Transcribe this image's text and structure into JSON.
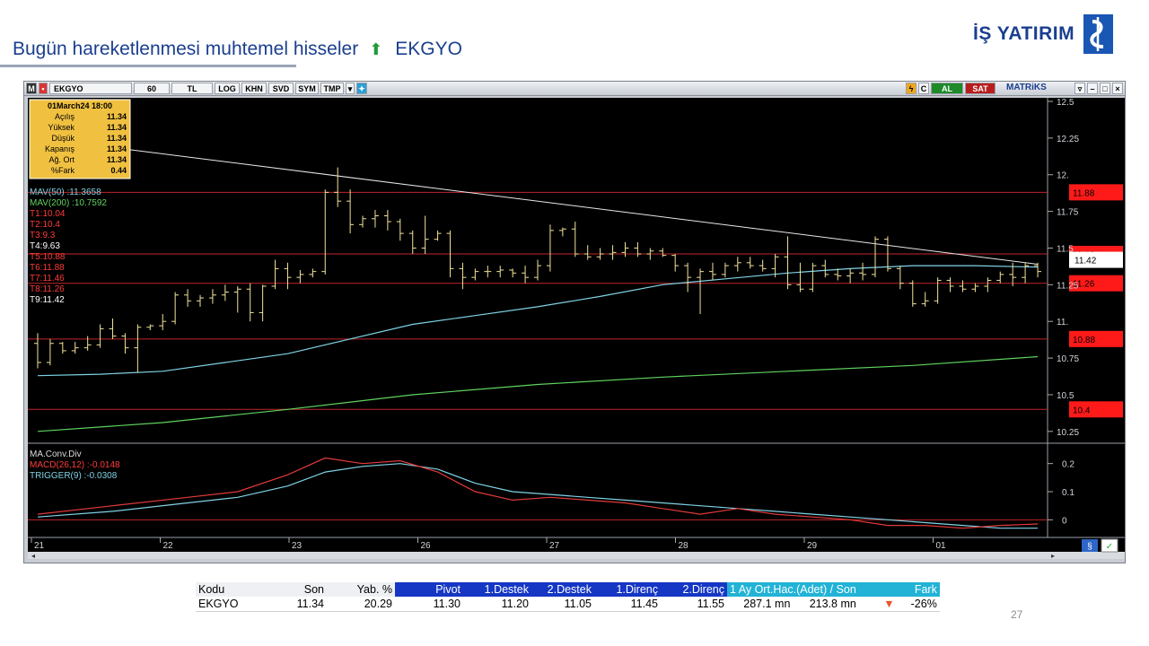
{
  "slide": {
    "title": "Bugün hareketlenmesi muhtemel hisseler",
    "arrow": "⬆",
    "symbol": "EKGYO",
    "logo": "İŞ YATIRIM",
    "page_number": "27"
  },
  "toolbar": {
    "symbol": "EKGYO",
    "period": "60",
    "currency": "TL",
    "scale": "LOG",
    "buttons": [
      "KHN",
      "SVD",
      "SYM",
      "TMP"
    ],
    "buy": "AL",
    "sell": "SAT",
    "brand": "MATRiKS"
  },
  "info_box": {
    "date": "01March24 18:00",
    "rows": [
      {
        "label": "Açılış",
        "value": "11.34"
      },
      {
        "label": "Yüksek",
        "value": "11.34"
      },
      {
        "label": "Düşük",
        "value": "11.34"
      },
      {
        "label": "Kapanış",
        "value": "11.34"
      },
      {
        "label": "Ağ. Ort",
        "value": "11.34"
      },
      {
        "label": "%Fark",
        "value": "0.44"
      }
    ]
  },
  "indicators": [
    {
      "text": "MAV(50)    :11.3658",
      "color": "#7fd3e6"
    },
    {
      "text": "MAV(200)   :10.7592",
      "color": "#5fd35f"
    },
    {
      "text": "T1:10.04",
      "color": "#ff3b3b"
    },
    {
      "text": "T2:10.4",
      "color": "#ff3b3b"
    },
    {
      "text": "T3:9.3",
      "color": "#ff3b3b"
    },
    {
      "text": "T4:9.63",
      "color": "#ffffff"
    },
    {
      "text": "T5:10.88",
      "color": "#ff3b3b"
    },
    {
      "text": "T6:11.88",
      "color": "#ff3b3b"
    },
    {
      "text": "T7:11.46",
      "color": "#ff3b3b"
    },
    {
      "text": "T8:11.26",
      "color": "#ff3b3b"
    },
    {
      "text": "T9:11.42",
      "color": "#ffffff"
    }
  ],
  "macd_labels": [
    {
      "text": "MA.Conv.Div",
      "color": "#dcdcdc"
    },
    {
      "text": "MACD(26,12)  :-0.0148",
      "color": "#ff3b3b"
    },
    {
      "text": "TRIGGER(9)   :-0.0308",
      "color": "#7fd3e6"
    }
  ],
  "chart_data": {
    "type": "candlestick",
    "symbol": "EKGYO",
    "y_ticks": [
      "12.5",
      "12.25",
      "12.",
      "11.75",
      "11.5",
      "11.25",
      "11.",
      "10.75",
      "10.5",
      "10.25"
    ],
    "ylim": [
      10.2,
      12.5
    ],
    "x_labels": [
      "21",
      "22",
      "23",
      "26",
      "27",
      "28",
      "29",
      "01"
    ],
    "last_price": "11.42",
    "level_tags": [
      {
        "value": 11.88,
        "label": "11.88"
      },
      {
        "value": 11.46,
        "label": "11.46"
      },
      {
        "value": 11.26,
        "label": "11.26"
      },
      {
        "value": 10.88,
        "label": "10.88"
      },
      {
        "value": 10.4,
        "label": "10.4"
      }
    ],
    "trendline": [
      [
        0,
        12.25
      ],
      [
        80,
        11.39
      ]
    ],
    "ohlc": [
      [
        10.85,
        10.92,
        10.68,
        10.72
      ],
      [
        10.72,
        10.88,
        10.7,
        10.85
      ],
      [
        10.85,
        10.86,
        10.78,
        10.8
      ],
      [
        10.8,
        10.86,
        10.78,
        10.82
      ],
      [
        10.82,
        10.9,
        10.8,
        10.84
      ],
      [
        10.84,
        10.98,
        10.82,
        10.95
      ],
      [
        10.95,
        11.02,
        10.88,
        10.9
      ],
      [
        10.9,
        10.92,
        10.78,
        10.82
      ],
      [
        10.82,
        10.98,
        10.65,
        10.96
      ],
      [
        10.96,
        10.98,
        10.94,
        10.97
      ],
      [
        10.97,
        11.05,
        10.94,
        11.0
      ],
      [
        11.0,
        11.2,
        10.98,
        11.18
      ],
      [
        11.18,
        11.22,
        11.1,
        11.14
      ],
      [
        11.14,
        11.18,
        11.1,
        11.16
      ],
      [
        11.16,
        11.22,
        11.12,
        11.18
      ],
      [
        11.18,
        11.25,
        11.14,
        11.2
      ],
      [
        11.2,
        11.24,
        11.06,
        11.22
      ],
      [
        11.22,
        11.26,
        11.0,
        11.06
      ],
      [
        11.06,
        11.25,
        11.0,
        11.24
      ],
      [
        11.24,
        11.42,
        11.22,
        11.36
      ],
      [
        11.36,
        11.4,
        11.22,
        11.3
      ],
      [
        11.3,
        11.35,
        11.26,
        11.32
      ],
      [
        11.32,
        11.36,
        11.3,
        11.34
      ],
      [
        11.34,
        11.9,
        11.32,
        11.88
      ],
      [
        11.88,
        12.05,
        11.78,
        11.82
      ],
      [
        11.82,
        11.9,
        11.6,
        11.66
      ],
      [
        11.66,
        11.72,
        11.64,
        11.7
      ],
      [
        11.7,
        11.76,
        11.64,
        11.72
      ],
      [
        11.72,
        11.76,
        11.62,
        11.68
      ],
      [
        11.68,
        11.7,
        11.55,
        11.6
      ],
      [
        11.6,
        11.62,
        11.46,
        11.5
      ],
      [
        11.5,
        11.72,
        11.46,
        11.56
      ],
      [
        11.56,
        11.62,
        11.55,
        11.6
      ],
      [
        11.6,
        11.62,
        11.3,
        11.36
      ],
      [
        11.36,
        11.4,
        11.22,
        11.3
      ],
      [
        11.3,
        11.36,
        11.28,
        11.34
      ],
      [
        11.34,
        11.38,
        11.3,
        11.34
      ],
      [
        11.34,
        11.38,
        11.3,
        11.35
      ],
      [
        11.35,
        11.36,
        11.3,
        11.33
      ],
      [
        11.33,
        11.38,
        11.26,
        11.3
      ],
      [
        11.3,
        11.42,
        11.28,
        11.38
      ],
      [
        11.38,
        11.66,
        11.34,
        11.62
      ],
      [
        11.62,
        11.64,
        11.58,
        11.63
      ],
      [
        11.63,
        11.68,
        11.44,
        11.46
      ],
      [
        11.46,
        11.52,
        11.42,
        11.44
      ],
      [
        11.44,
        11.5,
        11.42,
        11.46
      ],
      [
        11.46,
        11.52,
        11.42,
        11.47
      ],
      [
        11.47,
        11.54,
        11.44,
        11.5
      ],
      [
        11.5,
        11.54,
        11.44,
        11.46
      ],
      [
        11.46,
        11.5,
        11.42,
        11.48
      ],
      [
        11.48,
        11.5,
        11.44,
        11.45
      ],
      [
        11.45,
        11.46,
        11.34,
        11.38
      ],
      [
        11.38,
        11.4,
        11.2,
        11.3
      ],
      [
        11.3,
        11.36,
        11.05,
        11.34
      ],
      [
        11.34,
        11.4,
        11.28,
        11.32
      ],
      [
        11.32,
        11.4,
        11.3,
        11.38
      ],
      [
        11.38,
        11.44,
        11.34,
        11.4
      ],
      [
        11.4,
        11.44,
        11.36,
        11.38
      ],
      [
        11.38,
        11.42,
        11.34,
        11.36
      ],
      [
        11.36,
        11.46,
        11.3,
        11.44
      ],
      [
        11.44,
        11.58,
        11.22,
        11.25
      ],
      [
        11.25,
        11.4,
        11.2,
        11.22
      ],
      [
        11.22,
        11.4,
        11.2,
        11.38
      ],
      [
        11.38,
        11.42,
        11.3,
        11.32
      ],
      [
        11.32,
        11.36,
        11.28,
        11.31
      ],
      [
        11.31,
        11.36,
        11.26,
        11.33
      ],
      [
        11.33,
        11.4,
        11.28,
        11.32
      ],
      [
        11.32,
        11.58,
        11.3,
        11.56
      ],
      [
        11.56,
        11.58,
        11.34,
        11.36
      ],
      [
        11.36,
        11.38,
        11.22,
        11.26
      ],
      [
        11.26,
        11.28,
        11.1,
        11.12
      ],
      [
        11.12,
        11.2,
        11.1,
        11.14
      ],
      [
        11.14,
        11.3,
        11.12,
        11.28
      ],
      [
        11.28,
        11.3,
        11.2,
        11.24
      ],
      [
        11.24,
        11.28,
        11.2,
        11.22
      ],
      [
        11.22,
        11.26,
        11.2,
        11.24
      ],
      [
        11.24,
        11.3,
        11.2,
        11.28
      ],
      [
        11.28,
        11.34,
        11.26,
        11.32
      ],
      [
        11.32,
        11.4,
        11.24,
        11.3
      ],
      [
        11.3,
        11.4,
        11.26,
        11.38
      ],
      [
        11.38,
        11.4,
        11.3,
        11.34
      ]
    ],
    "ma50": [
      [
        0,
        10.63
      ],
      [
        5,
        10.64
      ],
      [
        10,
        10.66
      ],
      [
        15,
        10.72
      ],
      [
        20,
        10.78
      ],
      [
        25,
        10.88
      ],
      [
        30,
        10.98
      ],
      [
        35,
        11.04
      ],
      [
        40,
        11.1
      ],
      [
        45,
        11.17
      ],
      [
        50,
        11.25
      ],
      [
        55,
        11.29
      ],
      [
        60,
        11.33
      ],
      [
        65,
        11.36
      ],
      [
        70,
        11.38
      ],
      [
        75,
        11.38
      ],
      [
        80,
        11.37
      ]
    ],
    "ma200": [
      [
        0,
        10.25
      ],
      [
        10,
        10.31
      ],
      [
        20,
        10.4
      ],
      [
        30,
        10.5
      ],
      [
        40,
        10.57
      ],
      [
        50,
        10.62
      ],
      [
        60,
        10.66
      ],
      [
        70,
        10.7
      ],
      [
        80,
        10.76
      ]
    ],
    "macd": [
      [
        0,
        0.02
      ],
      [
        6,
        0.05
      ],
      [
        12,
        0.08
      ],
      [
        16,
        0.1
      ],
      [
        20,
        0.16
      ],
      [
        23,
        0.22
      ],
      [
        26,
        0.2
      ],
      [
        29,
        0.21
      ],
      [
        32,
        0.17
      ],
      [
        35,
        0.1
      ],
      [
        38,
        0.07
      ],
      [
        41,
        0.08
      ],
      [
        44,
        0.07
      ],
      [
        47,
        0.06
      ],
      [
        50,
        0.04
      ],
      [
        53,
        0.02
      ],
      [
        56,
        0.04
      ],
      [
        59,
        0.02
      ],
      [
        62,
        0.01
      ],
      [
        65,
        0.0
      ],
      [
        68,
        -0.02
      ],
      [
        71,
        -0.02
      ],
      [
        74,
        -0.03
      ],
      [
        77,
        -0.02
      ],
      [
        80,
        -0.015
      ]
    ],
    "trigger": [
      [
        0,
        0.01
      ],
      [
        6,
        0.03
      ],
      [
        12,
        0.06
      ],
      [
        16,
        0.08
      ],
      [
        20,
        0.12
      ],
      [
        23,
        0.17
      ],
      [
        26,
        0.19
      ],
      [
        29,
        0.2
      ],
      [
        32,
        0.18
      ],
      [
        35,
        0.13
      ],
      [
        38,
        0.1
      ],
      [
        41,
        0.09
      ],
      [
        44,
        0.08
      ],
      [
        47,
        0.07
      ],
      [
        50,
        0.06
      ],
      [
        53,
        0.05
      ],
      [
        56,
        0.04
      ],
      [
        59,
        0.03
      ],
      [
        62,
        0.02
      ],
      [
        65,
        0.01
      ],
      [
        68,
        0.0
      ],
      [
        71,
        -0.01
      ],
      [
        74,
        -0.02
      ],
      [
        77,
        -0.03
      ],
      [
        80,
        -0.03
      ]
    ],
    "macd_ticks": [
      "0.2",
      "0.1",
      "0"
    ],
    "macd_ylim": [
      -0.05,
      0.25
    ]
  },
  "table": {
    "headers": [
      "Kodu",
      "Son",
      "Yab. %",
      "Pivot",
      "1.Destek",
      "2.Destek",
      "1.Direnç",
      "2.Direnç",
      "1 Ay Ort.Hac.(Adet)  /  Son",
      "Fark"
    ],
    "row": [
      "EKGYO",
      "11.34",
      "20.29",
      "11.30",
      "11.20",
      "11.05",
      "11.45",
      "11.55",
      "287.1 mn",
      "213.8 mn",
      "-26%"
    ]
  },
  "colors": {
    "title": "#1a3f8f",
    "candle": "#f2e39a",
    "grid_red": "#c0262a",
    "tag_red": "#ff1a1a",
    "table_head_blue": "#1537c4",
    "table_head_teal": "#22b3d6"
  }
}
